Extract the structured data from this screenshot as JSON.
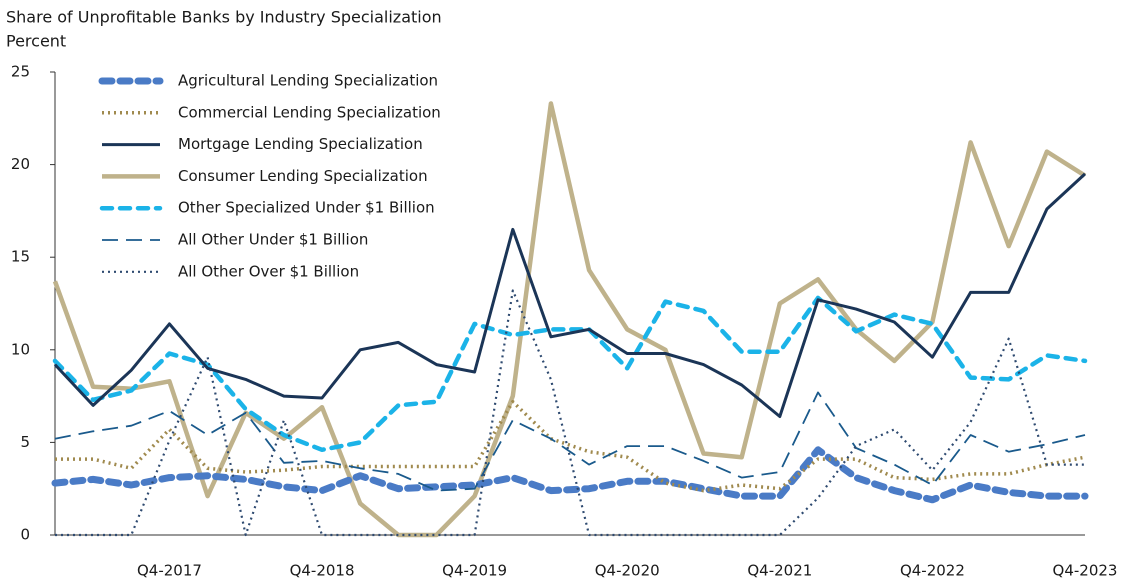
{
  "chart_data": {
    "type": "line",
    "title": "Share of Unprofitable Banks by Industry Specialization",
    "subtitle": "Percent",
    "categories": [
      null,
      null,
      null,
      "Q4-2017",
      null,
      null,
      null,
      "Q4-2018",
      null,
      null,
      null,
      "Q4-2019",
      null,
      null,
      null,
      "Q4-2020",
      null,
      null,
      null,
      "Q4-2021",
      null,
      null,
      null,
      "Q4-2022",
      null,
      null,
      null,
      "Q4-2023"
    ],
    "ylim": [
      0,
      25
    ],
    "yticks": [
      0,
      5,
      10,
      15,
      20,
      25
    ],
    "legend": "upper-left",
    "series": [
      {
        "name": "Agricultural Lending Specialization",
        "color": "#4a7bc6",
        "style": "dashed",
        "values": [
          2.8,
          3.0,
          2.7,
          3.1,
          3.2,
          3.0,
          2.6,
          2.4,
          3.2,
          2.5,
          2.6,
          2.7,
          3.1,
          2.4,
          2.5,
          2.9,
          2.9,
          2.5,
          2.1,
          2.1,
          4.6,
          3.1,
          2.4,
          1.9,
          2.7,
          2.3,
          2.1,
          2.1
        ]
      },
      {
        "name": "Commercial Lending Specialization",
        "color": "#a08a4e",
        "style": "dotted",
        "values": [
          4.1,
          4.1,
          3.6,
          5.7,
          3.6,
          3.4,
          3.5,
          3.7,
          3.7,
          3.7,
          3.7,
          3.7,
          7.2,
          5.2,
          4.5,
          4.2,
          2.8,
          2.4,
          2.7,
          2.5,
          4.1,
          4.1,
          3.1,
          3.0,
          3.3,
          3.3,
          3.8,
          4.2
        ]
      },
      {
        "name": "Mortgage Lending Specialization",
        "color": "#1b3557",
        "style": "solid",
        "values": [
          9.2,
          7.0,
          8.9,
          11.4,
          9.0,
          8.4,
          7.5,
          7.4,
          10.0,
          10.4,
          9.2,
          8.8,
          16.5,
          10.7,
          11.1,
          9.8,
          9.8,
          9.2,
          8.1,
          6.4,
          12.7,
          12.2,
          11.5,
          9.6,
          13.1,
          13.1,
          17.6,
          19.5
        ]
      },
      {
        "name": "Consumer Lending Specialization",
        "color": "#bfb28b",
        "style": "solid",
        "values": [
          13.7,
          8.0,
          7.9,
          8.3,
          2.1,
          6.6,
          5.2,
          6.9,
          1.7,
          0,
          0,
          2.1,
          7.5,
          23.3,
          14.3,
          11.1,
          10.0,
          4.4,
          4.2,
          12.5,
          13.8,
          11.1,
          9.4,
          11.5,
          21.2,
          15.6,
          20.7,
          19.4
        ]
      },
      {
        "name": "Other Specialized Under $1 Billion",
        "color": "#1bb3e8",
        "style": "dashed",
        "values": [
          9.4,
          7.3,
          7.8,
          9.8,
          9.2,
          6.8,
          5.4,
          4.6,
          5.0,
          7.0,
          7.2,
          11.4,
          10.8,
          11.1,
          11.1,
          9.0,
          12.6,
          12.1,
          9.9,
          9.9,
          12.8,
          11.0,
          11.9,
          11.4,
          8.5,
          8.4,
          9.7,
          9.4
        ]
      },
      {
        "name": "All Other Under $1 Billion",
        "color": "#1a5a8c",
        "style": "longdash",
        "values": [
          5.2,
          5.6,
          5.9,
          6.7,
          5.4,
          6.6,
          3.9,
          4.0,
          3.6,
          3.3,
          2.4,
          2.5,
          6.2,
          5.2,
          3.8,
          4.8,
          4.8,
          4.0,
          3.1,
          3.4,
          7.7,
          4.7,
          3.8,
          2.7,
          5.4,
          4.5,
          4.9,
          5.4
        ]
      },
      {
        "name": "All Other Over $1 Billion",
        "color": "#2e4a70",
        "style": "dotted",
        "values": [
          0,
          0,
          0,
          5.1,
          9.6,
          0,
          6.2,
          0,
          0,
          0,
          0,
          0,
          13.2,
          8.4,
          0,
          0,
          0,
          0,
          0,
          0,
          2.0,
          4.8,
          5.7,
          3.5,
          6.1,
          10.6,
          3.8,
          3.8
        ]
      }
    ]
  }
}
